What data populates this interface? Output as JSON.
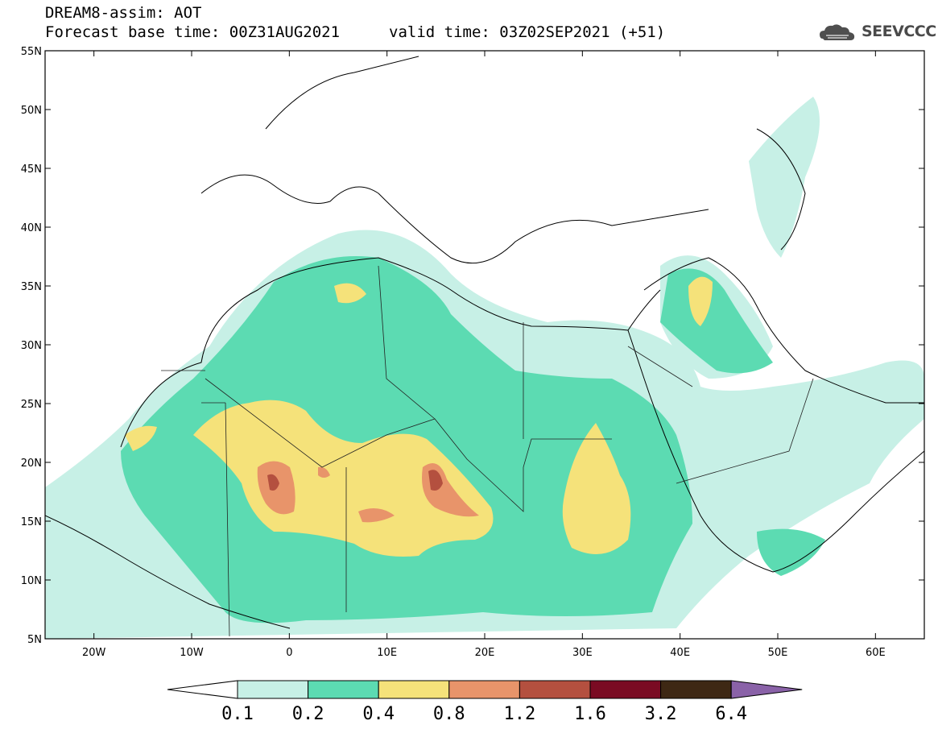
{
  "title": {
    "line1": "DREAM8-assim: AOT",
    "line2": "Forecast base time: 00Z31AUG2021",
    "valid": "valid time: 03Z02SEP2021 (+51)"
  },
  "logo": {
    "text": "SEEVCCC",
    "icon": "cloud-logo-icon"
  },
  "map": {
    "lat_labels": [
      "55N",
      "50N",
      "45N",
      "40N",
      "35N",
      "30N",
      "25N",
      "20N",
      "15N",
      "10N",
      "5N"
    ],
    "lon_labels": [
      "20W",
      "10W",
      "0",
      "10E",
      "20E",
      "30E",
      "40E",
      "50E",
      "60E"
    ],
    "extent": {
      "lon_min": -25,
      "lon_max": 65,
      "lat_min": 5,
      "lat_max": 55
    }
  },
  "colorbar": {
    "labels": [
      "0.1",
      "0.2",
      "0.4",
      "0.8",
      "1.2",
      "1.6",
      "3.2",
      "6.4"
    ],
    "colors": [
      "#ffffff",
      "#c7f0e6",
      "#5cdbb2",
      "#f5e27a",
      "#e8946a",
      "#b4503f",
      "#7a0b23",
      "#3e2814",
      "#8a62a8"
    ]
  }
}
